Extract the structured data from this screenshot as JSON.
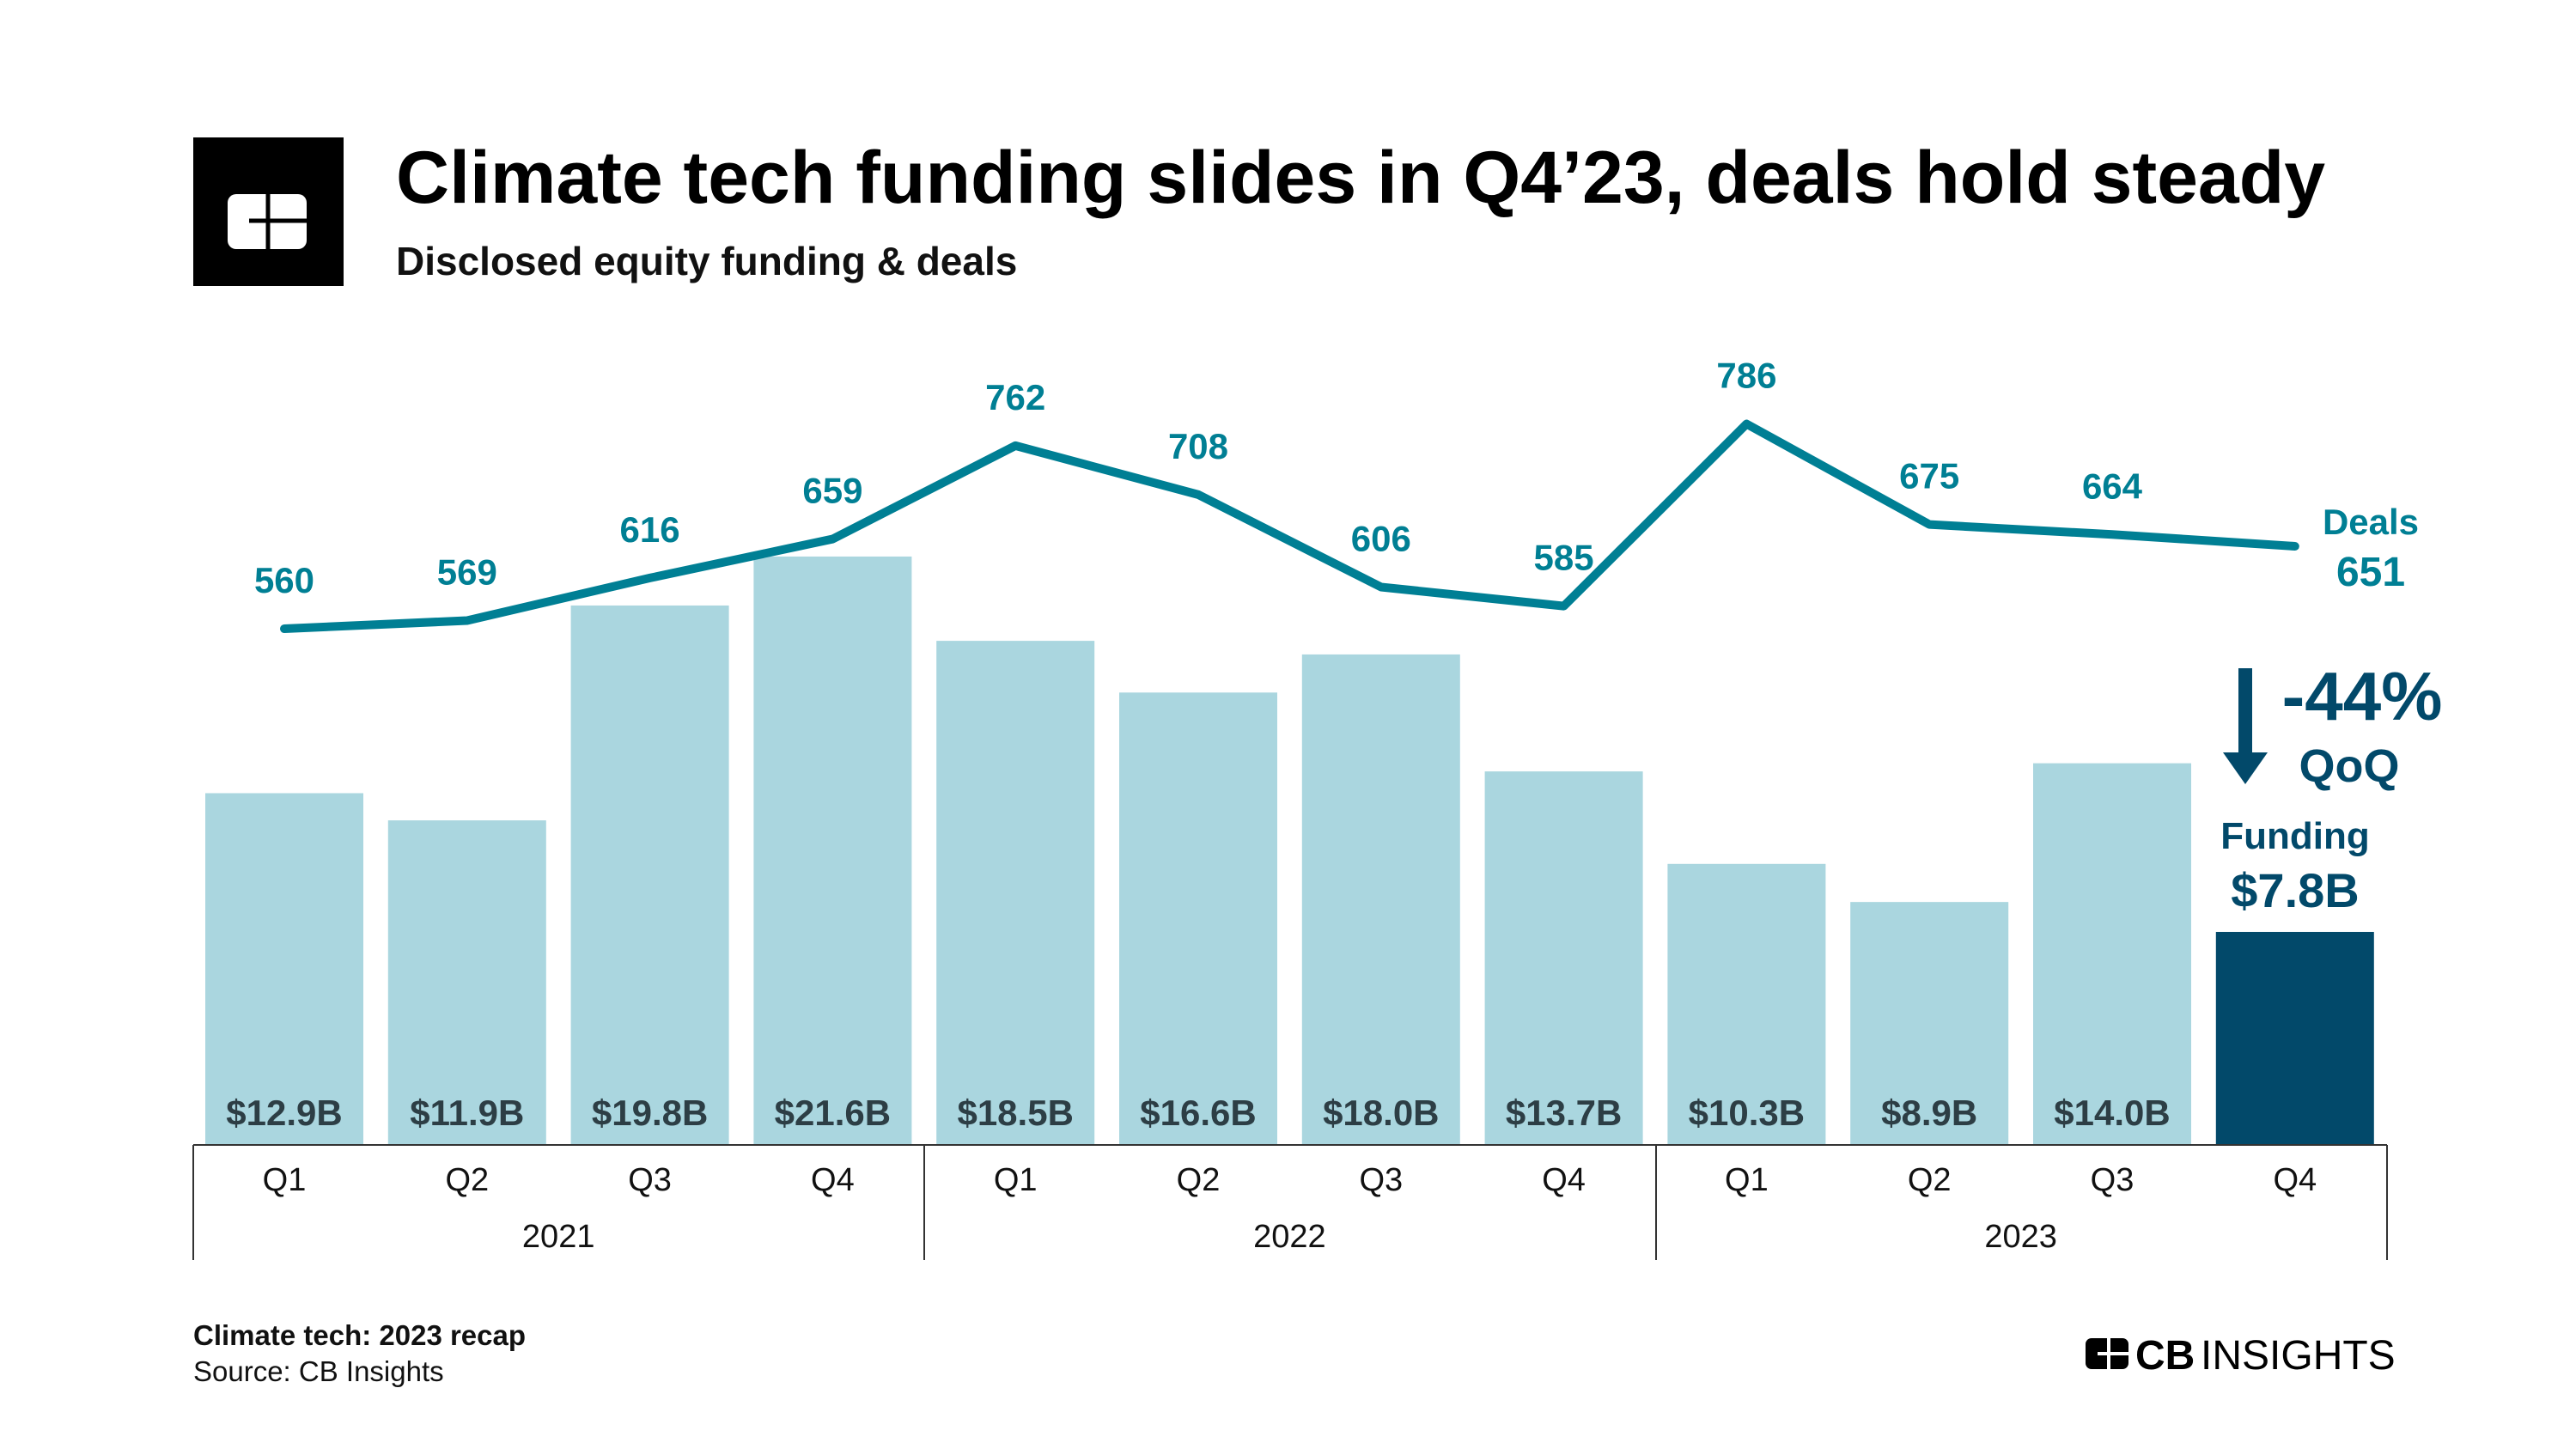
{
  "header": {
    "title": "Climate tech funding slides in Q4’23, deals hold steady",
    "subtitle": "Disclosed equity funding & deals"
  },
  "chart_data": {
    "type": "bar+line",
    "categories": [
      "Q1",
      "Q2",
      "Q3",
      "Q4",
      "Q1",
      "Q2",
      "Q3",
      "Q4",
      "Q1",
      "Q2",
      "Q3",
      "Q4"
    ],
    "years": [
      "2021",
      "2022",
      "2023"
    ],
    "series": [
      {
        "name": "Funding",
        "type": "bar",
        "unit": "$B",
        "values": [
          12.9,
          11.9,
          19.8,
          21.6,
          18.5,
          16.6,
          18.0,
          13.7,
          10.3,
          8.9,
          14.0,
          7.8
        ],
        "labels": [
          "$12.9B",
          "$11.9B",
          "$19.8B",
          "$21.6B",
          "$18.5B",
          "$16.6B",
          "$18.0B",
          "$13.7B",
          "$10.3B",
          "$8.9B",
          "$14.0B",
          "$7.8B"
        ]
      },
      {
        "name": "Deals",
        "type": "line",
        "values": [
          560,
          569,
          616,
          659,
          762,
          708,
          606,
          585,
          786,
          675,
          664,
          651
        ]
      }
    ],
    "colors": {
      "bar": "#aad6df",
      "bar_highlight": "#02496a",
      "line": "#007f94",
      "annotation": "#02496a"
    },
    "annotations": {
      "deals_label": "Deals",
      "deals_value": "651",
      "change": "-44%",
      "change_period": "QoQ",
      "funding_label": "Funding",
      "funding_value": "$7.8B"
    }
  },
  "footer": {
    "report": "Climate tech: 2023 recap",
    "source": "Source: CB Insights",
    "brand_cb": "CB",
    "brand_insights": "INSIGHTS"
  }
}
